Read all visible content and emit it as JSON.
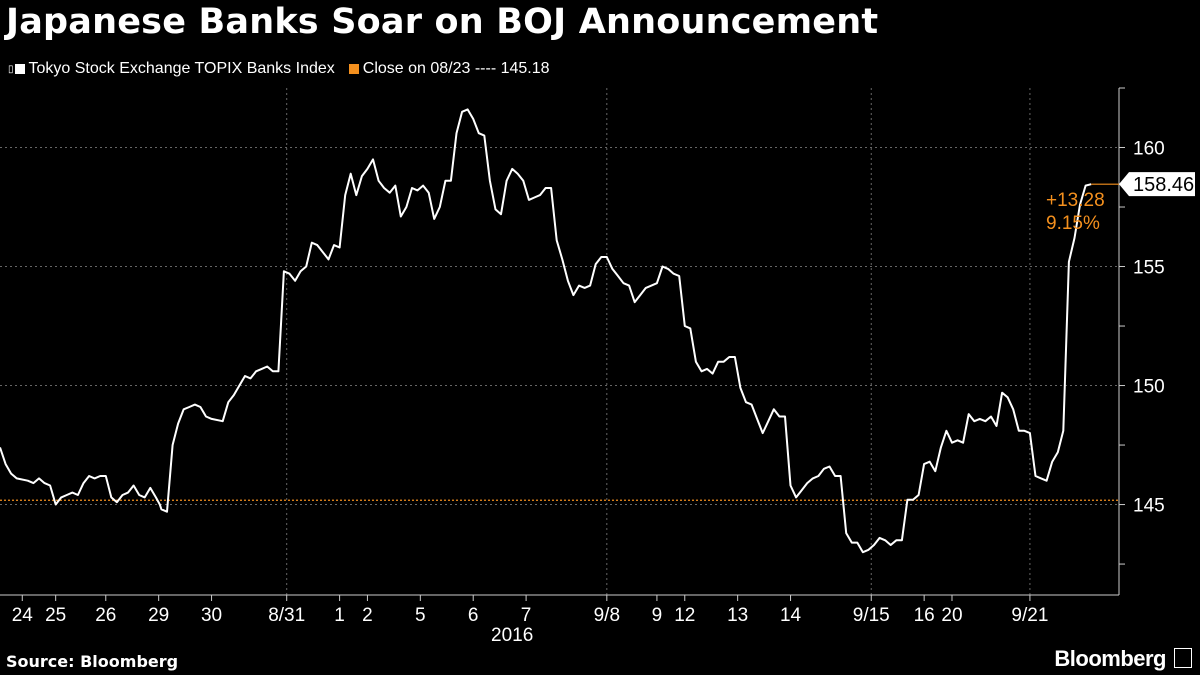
{
  "chart_data": {
    "type": "line",
    "title": "Japanese Banks Soar on BOJ Announcement",
    "legend": [
      {
        "name": "Tokyo Stock Exchange TOPIX Banks Index",
        "color": "#ffffff"
      },
      {
        "name": "Close on 08/23 ---- 145.18",
        "color": "#f4901e"
      }
    ],
    "reference_line": {
      "value": 145.18,
      "color": "#f4901e"
    },
    "ylim": [
      141.2,
      162.5
    ],
    "yticks": [
      {
        "value": 160,
        "label": "160"
      },
      {
        "value": 155,
        "label": "155"
      },
      {
        "value": 150,
        "label": "150"
      },
      {
        "value": 145,
        "label": "145"
      }
    ],
    "x_range": [
      0,
      201
    ],
    "xticks": [
      {
        "x": 4,
        "label": "24"
      },
      {
        "x": 10,
        "label": "25"
      },
      {
        "x": 19,
        "label": "26"
      },
      {
        "x": 28.5,
        "label": "29"
      },
      {
        "x": 38,
        "label": "30"
      },
      {
        "x": 51.5,
        "label": "8/31"
      },
      {
        "x": 61,
        "label": "1"
      },
      {
        "x": 66,
        "label": "2"
      },
      {
        "x": 75.5,
        "label": "5"
      },
      {
        "x": 85,
        "label": "6"
      },
      {
        "x": 94.5,
        "label": "7"
      },
      {
        "x": 109,
        "label": "9/8"
      },
      {
        "x": 118,
        "label": "9"
      },
      {
        "x": 123,
        "label": "12"
      },
      {
        "x": 132.5,
        "label": "13"
      },
      {
        "x": 142,
        "label": "14"
      },
      {
        "x": 156.5,
        "label": "9/15"
      },
      {
        "x": 166,
        "label": "16"
      },
      {
        "x": 171,
        "label": "20"
      },
      {
        "x": 185,
        "label": "9/21"
      }
    ],
    "year_label": {
      "x": 92,
      "label": "2016"
    },
    "vgrid": [
      51.5,
      109,
      156.5,
      185
    ],
    "series": [
      {
        "name": "Tokyo Stock Exchange TOPIX Banks Index",
        "color": "#ffffff",
        "points": [
          [
            0,
            147.4
          ],
          [
            1,
            146.7
          ],
          [
            2,
            146.3
          ],
          [
            3,
            146.1
          ],
          [
            5,
            146.0
          ],
          [
            6,
            145.9
          ],
          [
            7,
            146.1
          ],
          [
            8,
            145.9
          ],
          [
            9,
            145.8
          ],
          [
            10,
            145.0
          ],
          [
            11,
            145.3
          ],
          [
            12,
            145.4
          ],
          [
            13,
            145.5
          ],
          [
            14,
            145.4
          ],
          [
            15,
            145.9
          ],
          [
            16,
            146.2
          ],
          [
            17,
            146.1
          ],
          [
            18,
            146.2
          ],
          [
            19,
            146.2
          ],
          [
            20,
            145.3
          ],
          [
            21,
            145.1
          ],
          [
            22,
            145.4
          ],
          [
            23,
            145.5
          ],
          [
            24,
            145.8
          ],
          [
            25,
            145.4
          ],
          [
            26,
            145.3
          ],
          [
            27,
            145.7
          ],
          [
            28,
            145.3
          ],
          [
            28.7,
            145.0
          ],
          [
            29,
            144.8
          ],
          [
            30,
            144.7
          ],
          [
            31,
            147.5
          ],
          [
            32,
            148.4
          ],
          [
            33,
            149.0
          ],
          [
            34,
            149.1
          ],
          [
            35,
            149.2
          ],
          [
            36,
            149.1
          ],
          [
            37,
            148.7
          ],
          [
            38,
            148.6
          ],
          [
            40,
            148.5
          ],
          [
            41,
            149.3
          ],
          [
            42,
            149.6
          ],
          [
            43,
            150.0
          ],
          [
            44,
            150.4
          ],
          [
            45,
            150.3
          ],
          [
            46,
            150.6
          ],
          [
            47,
            150.7
          ],
          [
            48,
            150.8
          ],
          [
            49,
            150.6
          ],
          [
            50,
            150.6
          ],
          [
            51,
            154.8
          ],
          [
            52,
            154.7
          ],
          [
            53,
            154.4
          ],
          [
            54,
            154.8
          ],
          [
            55,
            155.0
          ],
          [
            56,
            156.0
          ],
          [
            57,
            155.9
          ],
          [
            58,
            155.6
          ],
          [
            59,
            155.3
          ],
          [
            60,
            155.9
          ],
          [
            61,
            155.8
          ],
          [
            62,
            158.0
          ],
          [
            63,
            158.9
          ],
          [
            64,
            158.0
          ],
          [
            65,
            158.8
          ],
          [
            66,
            159.1
          ],
          [
            67,
            159.5
          ],
          [
            68,
            158.6
          ],
          [
            69,
            158.3
          ],
          [
            70,
            158.1
          ],
          [
            71,
            158.4
          ],
          [
            72,
            157.1
          ],
          [
            73,
            157.5
          ],
          [
            74,
            158.3
          ],
          [
            75,
            158.2
          ],
          [
            76,
            158.4
          ],
          [
            77,
            158.1
          ],
          [
            78,
            157.0
          ],
          [
            79,
            157.5
          ],
          [
            80,
            158.6
          ],
          [
            81,
            158.6
          ],
          [
            82,
            160.6
          ],
          [
            83,
            161.5
          ],
          [
            84,
            161.6
          ],
          [
            85,
            161.2
          ],
          [
            86,
            160.6
          ],
          [
            87,
            160.5
          ],
          [
            88,
            158.6
          ],
          [
            89,
            157.4
          ],
          [
            90,
            157.2
          ],
          [
            91,
            158.6
          ],
          [
            92,
            159.1
          ],
          [
            93,
            158.9
          ],
          [
            94,
            158.6
          ],
          [
            95,
            157.8
          ],
          [
            96,
            157.9
          ],
          [
            97,
            158.0
          ],
          [
            98,
            158.3
          ],
          [
            99,
            158.3
          ],
          [
            100,
            156.1
          ],
          [
            101,
            155.3
          ],
          [
            102,
            154.4
          ],
          [
            103,
            153.8
          ],
          [
            104,
            154.2
          ],
          [
            105,
            154.1
          ],
          [
            106,
            154.2
          ],
          [
            107,
            155.1
          ],
          [
            108,
            155.4
          ],
          [
            109,
            155.4
          ],
          [
            110,
            154.9
          ],
          [
            111,
            154.6
          ],
          [
            112,
            154.3
          ],
          [
            113,
            154.2
          ],
          [
            114,
            153.5
          ],
          [
            115,
            153.8
          ],
          [
            116,
            154.1
          ],
          [
            117,
            154.2
          ],
          [
            118,
            154.3
          ],
          [
            119,
            155.0
          ],
          [
            120,
            154.9
          ],
          [
            121,
            154.7
          ],
          [
            122,
            154.6
          ],
          [
            123,
            152.5
          ],
          [
            124,
            152.4
          ],
          [
            125,
            151.0
          ],
          [
            126,
            150.6
          ],
          [
            127,
            150.7
          ],
          [
            128,
            150.5
          ],
          [
            129,
            151.0
          ],
          [
            130,
            151.0
          ],
          [
            131,
            151.2
          ],
          [
            132,
            151.2
          ],
          [
            133,
            149.9
          ],
          [
            134,
            149.3
          ],
          [
            135,
            149.2
          ],
          [
            136,
            148.6
          ],
          [
            137,
            148.0
          ],
          [
            138,
            148.5
          ],
          [
            139,
            149.0
          ],
          [
            140,
            148.7
          ],
          [
            141,
            148.7
          ],
          [
            142,
            145.8
          ],
          [
            143,
            145.3
          ],
          [
            144,
            145.6
          ],
          [
            145,
            145.9
          ],
          [
            146,
            146.1
          ],
          [
            147,
            146.2
          ],
          [
            148,
            146.5
          ],
          [
            149,
            146.6
          ],
          [
            150,
            146.2
          ],
          [
            151,
            146.2
          ],
          [
            152,
            143.8
          ],
          [
            153,
            143.4
          ],
          [
            154,
            143.4
          ],
          [
            155,
            143.0
          ],
          [
            156,
            143.1
          ],
          [
            157,
            143.3
          ],
          [
            158,
            143.6
          ],
          [
            159,
            143.5
          ],
          [
            160,
            143.3
          ],
          [
            161,
            143.5
          ],
          [
            162,
            143.5
          ],
          [
            163,
            145.2
          ],
          [
            164,
            145.2
          ],
          [
            165,
            145.4
          ],
          [
            166,
            146.7
          ],
          [
            167,
            146.8
          ],
          [
            168,
            146.4
          ],
          [
            169,
            147.4
          ],
          [
            170,
            148.1
          ],
          [
            171,
            147.6
          ],
          [
            172,
            147.7
          ],
          [
            173,
            147.6
          ],
          [
            174,
            148.8
          ],
          [
            175,
            148.5
          ],
          [
            176,
            148.6
          ],
          [
            177,
            148.5
          ],
          [
            178,
            148.7
          ],
          [
            179,
            148.3
          ],
          [
            180,
            149.7
          ],
          [
            181,
            149.5
          ],
          [
            182,
            149.0
          ],
          [
            183,
            148.1
          ],
          [
            184,
            148.1
          ],
          [
            185,
            148.0
          ],
          [
            186,
            146.2
          ],
          [
            187,
            146.1
          ],
          [
            188,
            146.0
          ],
          [
            189,
            146.8
          ],
          [
            190,
            147.2
          ],
          [
            191,
            148.1
          ],
          [
            192,
            155.2
          ],
          [
            193,
            156.2
          ],
          [
            194,
            157.6
          ],
          [
            195,
            158.4
          ],
          [
            196,
            158.46
          ]
        ]
      }
    ],
    "last_value": {
      "label": "158.46",
      "value": 158.46
    },
    "change_annotation": {
      "change": "+13.28",
      "percent": "9.15%",
      "color": "#f4901e"
    }
  },
  "footer": {
    "source": "Source: Bloomberg",
    "brand": "Bloomberg"
  }
}
